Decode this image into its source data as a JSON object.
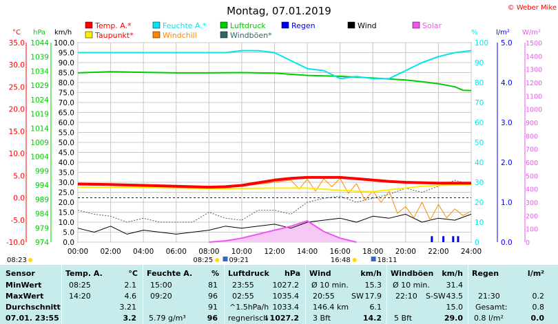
{
  "header": {
    "date_title": "Montag, 07.01.2019",
    "copyright": "© Weber Mike",
    "legend": [
      {
        "label": "Temp. A.*",
        "color": "#ff0000"
      },
      {
        "label": "Feuchte A.*",
        "color": "#00e5ee"
      },
      {
        "label": "Luftdruck",
        "color": "#00cc00"
      },
      {
        "label": "Regen",
        "color": "#0000ee"
      },
      {
        "label": "Wind",
        "color": "#000000"
      },
      {
        "label": "Solar",
        "color": "#ee55ee"
      },
      {
        "label": "Taupunkt*",
        "color": "#ffee00"
      },
      {
        "label": "Windchill",
        "color": "#ff8800"
      },
      {
        "label": "Windböen*",
        "color": "#336666"
      }
    ],
    "unit_celsius": "°C",
    "unit_hpa": "hPa",
    "unit_kmh": "km/h",
    "unit_percent": "%",
    "unit_rain": "l/m²",
    "unit_solar": "W/m²"
  },
  "chart_data": {
    "type": "line",
    "x_ticks": [
      "00:00",
      "02:00",
      "04:00",
      "06:00",
      "08:00",
      "10:00",
      "12:00",
      "14:00",
      "16:00",
      "18:00",
      "20:00",
      "22:00",
      "24:00"
    ],
    "x_range_hours": [
      0,
      24
    ],
    "axes": {
      "temperature": {
        "unit": "°C",
        "range": [
          -10,
          35
        ],
        "ticks": [
          "35.0",
          "30.0",
          "25.0",
          "20.0",
          "15.0",
          "10.0",
          "5.0",
          "0.0",
          "-5.0",
          "-10.0"
        ],
        "color": "#ff0000"
      },
      "pressure": {
        "unit": "hPa",
        "range": [
          974,
          1044
        ],
        "ticks": [
          "1044",
          "1039",
          "1034",
          "1029",
          "1024",
          "1019",
          "1014",
          "1009",
          "1004",
          "999",
          "994",
          "989",
          "984",
          "979",
          "974"
        ],
        "color": "#00cc00"
      },
      "wind": {
        "unit": "km/h",
        "range": [
          0,
          100
        ],
        "ticks": [
          "100.0",
          "95.0",
          "90.0",
          "85.0",
          "80.0",
          "75.0",
          "70.0",
          "65.0",
          "60.0",
          "55.0",
          "50.0",
          "45.0",
          "40.0",
          "35.0",
          "30.0",
          "25.0",
          "20.0",
          "15.0",
          "10.0",
          "5.0",
          "0.0"
        ],
        "color": "#000000"
      },
      "humidity": {
        "unit": "%",
        "range": [
          0,
          100
        ],
        "ticks": [
          "100",
          "90",
          "80",
          "70",
          "60",
          "50",
          "40",
          "30",
          "20",
          "10",
          "0"
        ],
        "color": "#00e5ee"
      },
      "rain": {
        "unit": "l/m²",
        "range": [
          0,
          5
        ],
        "ticks": [
          "5.0",
          "4.0",
          "3.0",
          "2.0",
          "1.0",
          "0.0"
        ],
        "color": "#0000ee"
      },
      "solar": {
        "unit": "W/m²",
        "range": [
          0,
          1500
        ],
        "ticks": [
          "1500",
          "1400",
          "1300",
          "1200",
          "1100",
          "1000",
          "900",
          "800",
          "700",
          "600",
          "500",
          "400",
          "300",
          "200",
          "100",
          "0"
        ],
        "color": "#ee55ee"
      }
    },
    "grid": true,
    "series": [
      {
        "name": "Temp. A.*",
        "axis": "temperature",
        "color": "#ff0000",
        "width": 4,
        "x": [
          0,
          2,
          4,
          6,
          8,
          9,
          10,
          11,
          12,
          13,
          14,
          15,
          16,
          17,
          18,
          19,
          20,
          21,
          22,
          23,
          24
        ],
        "y": [
          3.1,
          3.0,
          2.8,
          2.6,
          2.4,
          2.5,
          2.8,
          3.4,
          4.0,
          4.4,
          4.6,
          4.6,
          4.6,
          4.3,
          4.0,
          3.7,
          3.5,
          3.4,
          3.3,
          3.3,
          3.3
        ]
      },
      {
        "name": "Taupunkt*",
        "axis": "temperature",
        "color": "#ffee00",
        "width": 2,
        "x": [
          0,
          2,
          4,
          6,
          8,
          10,
          12,
          14,
          16,
          17,
          18,
          19,
          20,
          21,
          22,
          23,
          24
        ],
        "y": [
          2.4,
          2.4,
          2.3,
          2.2,
          2.1,
          2.1,
          2.2,
          2.2,
          1.7,
          1.5,
          1.4,
          1.8,
          2.2,
          2.6,
          2.8,
          2.9,
          3.0
        ]
      },
      {
        "name": "Windchill",
        "axis": "temperature",
        "color": "#ff8800",
        "width": 1,
        "x": [
          0,
          2,
          4,
          6,
          8,
          10,
          12,
          13,
          13.5,
          14,
          14.5,
          15,
          15.5,
          16,
          16.5,
          17,
          17.5,
          18,
          18.5,
          19,
          19.5,
          20,
          20.5,
          21,
          21.5,
          22,
          22.5,
          23,
          23.5,
          24
        ],
        "y": [
          2.9,
          2.8,
          2.7,
          2.5,
          2.3,
          2.6,
          3.5,
          4.0,
          2.0,
          4.2,
          1.5,
          4.3,
          2.5,
          4.4,
          1.0,
          3.2,
          -0.5,
          1.5,
          -1.0,
          1.5,
          -3.5,
          -2.0,
          -4.5,
          -1.0,
          -5.0,
          -1.5,
          -4.5,
          -2.5,
          -4.0,
          -3.0
        ]
      },
      {
        "name": "Feuchte A.*",
        "axis": "humidity",
        "color": "#00e5ee",
        "width": 2,
        "x": [
          0,
          2,
          4,
          6,
          8,
          9,
          10,
          11,
          12,
          13,
          14,
          15,
          16,
          17,
          18,
          19,
          20,
          21,
          22,
          23,
          24
        ],
        "y": [
          95,
          95,
          95,
          95,
          95,
          95,
          96,
          96,
          95,
          91,
          87,
          86,
          82,
          83,
          82,
          82,
          86,
          90,
          93,
          95,
          96
        ]
      },
      {
        "name": "Luftdruck",
        "axis": "pressure",
        "color": "#00cc00",
        "width": 2,
        "x": [
          0,
          2,
          4,
          6,
          8,
          10,
          12,
          13,
          14,
          16,
          18,
          20,
          21,
          22,
          23,
          23.5,
          24
        ],
        "y": [
          1033.4,
          1033.8,
          1033.6,
          1033.4,
          1033.4,
          1033.5,
          1033.3,
          1032.9,
          1032.5,
          1032.2,
          1031.6,
          1030.9,
          1030.3,
          1029.6,
          1028.5,
          1027.3,
          1027.2
        ]
      },
      {
        "name": "Wind",
        "axis": "wind",
        "color": "#000000",
        "width": 1,
        "x": [
          0,
          1,
          2,
          3,
          4,
          5,
          6,
          7,
          8,
          9,
          10,
          11,
          12,
          13,
          14,
          15,
          16,
          17,
          18,
          19,
          20,
          21,
          22,
          23,
          24
        ],
        "y": [
          7,
          5,
          8,
          4,
          6,
          5,
          4,
          5,
          6,
          8,
          7,
          8,
          9,
          7,
          10,
          11,
          12,
          10,
          13,
          12,
          14,
          10,
          12,
          11,
          14
        ]
      },
      {
        "name": "Windböen*",
        "axis": "wind",
        "color": "#336666",
        "width": 1,
        "x": [
          0,
          1,
          2,
          3,
          4,
          5,
          6,
          7,
          8,
          9,
          10,
          11,
          12,
          13,
          14,
          15,
          16,
          17,
          18,
          19,
          20,
          21,
          22,
          23,
          24
        ],
        "y": [
          16,
          14,
          13,
          10,
          12,
          10,
          10,
          10,
          15,
          12,
          11,
          16,
          16,
          14,
          20,
          22,
          23,
          20,
          22,
          24,
          27,
          25,
          28,
          31,
          29
        ]
      },
      {
        "name": "Solar",
        "axis": "solar",
        "color": "#ee55ee",
        "width": 2,
        "x": [
          8,
          9,
          10,
          11,
          12,
          13,
          14,
          15,
          16,
          17
        ],
        "y": [
          0,
          10,
          30,
          60,
          90,
          120,
          160,
          80,
          30,
          0
        ]
      }
    ],
    "rain_bars": [
      {
        "x": 21.6,
        "y": 0.15
      },
      {
        "x": 22.3,
        "y": 0.15
      },
      {
        "x": 22.9,
        "y": 0.15
      },
      {
        "x": 23.2,
        "y": 0.15
      }
    ],
    "sun_events": {
      "sunrise": "08:23",
      "sunrise_top": "08:25",
      "midday": "09:21",
      "sunset_top": "16:48",
      "sunset": "18:11"
    }
  },
  "table": {
    "header": {
      "sensor": "Sensor",
      "temp": "Temp. A.",
      "temp_unit": "°C",
      "humid": "Feuchte A.",
      "humid_unit": "%",
      "press": "Luftdruck",
      "press_unit": "hPa",
      "wind": "Wind",
      "wind_unit": "km/h",
      "gust": "Windböen",
      "gust_unit": "km/h",
      "rain": "Regen",
      "rain_unit": "l/m²"
    },
    "rows": [
      {
        "label": "MinWert",
        "t_time": "08:25",
        "t_val": "2.1",
        "h_time": "15:00",
        "h_val": "81",
        "p_time": "23:55",
        "p_val": "1027.2",
        "w_label": "Ø 10 min.",
        "w_val": "15.3",
        "g_label": "Ø 10 min.",
        "g_val": "31.4",
        "r_label": "",
        "r_val": ""
      },
      {
        "label": "MaxWert",
        "t_time": "14:20",
        "t_val": "4.6",
        "h_time": "09:20",
        "h_val": "96",
        "p_time": "02:55",
        "p_val": "1035.4",
        "w_label": "20:55",
        "w_mid": "SW",
        "w_val": "17.9",
        "g_label": "22:10",
        "g_mid": "S-SW",
        "g_val": "43.5",
        "r_label": "21:30",
        "r_val": "0.2"
      },
      {
        "label": "Durchschnitt",
        "t_time": "",
        "t_val": "3.21",
        "h_time": "",
        "h_val": "91",
        "p_time": "^1.5hPa/h",
        "p_val": "1033.4",
        "w_label": "146.4 km",
        "w_val": "6.1",
        "g_label": "",
        "g_val": "15.0",
        "r_label": "Gesamt:",
        "r_val": "0.8"
      },
      {
        "label": "07.01. 23:55",
        "t_time": "",
        "t_val": "3.2",
        "h_time": "5.79 g/m³",
        "h_val": "96",
        "p_time": "regnerisch",
        "p_val": "↓1027.2",
        "w_label": "3 Bft",
        "w_val": "14.2",
        "g_label": "5 Bft",
        "g_val": "29.0",
        "r_label": "0.8 l/m²",
        "r_val": "0.0"
      }
    ]
  }
}
